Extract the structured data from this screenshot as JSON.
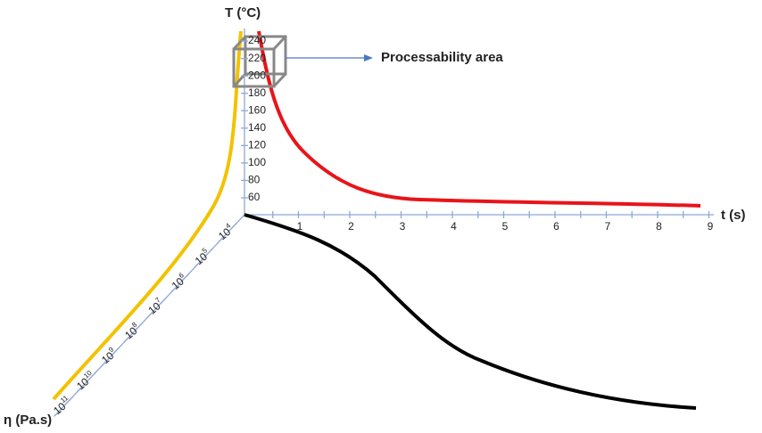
{
  "axes": {
    "temperature": {
      "label": "T (°C)",
      "ticks": [
        60,
        80,
        100,
        120,
        140,
        160,
        180,
        200,
        220,
        240
      ]
    },
    "time": {
      "label": "t (s)",
      "ticks": [
        1,
        2,
        3,
        4,
        5,
        6,
        7,
        8,
        9
      ]
    },
    "viscosity": {
      "label": "η (Pa.s)",
      "ticks": [
        {
          "base": "10",
          "exp": "4"
        },
        {
          "base": "10",
          "exp": "5"
        },
        {
          "base": "10",
          "exp": "6"
        },
        {
          "base": "10",
          "exp": "7"
        },
        {
          "base": "10",
          "exp": "8"
        },
        {
          "base": "10",
          "exp": "9"
        },
        {
          "base": "10",
          "exp": "10"
        },
        {
          "base": "10",
          "exp": "11"
        }
      ]
    }
  },
  "annotation": {
    "label": "Processability area"
  }
}
